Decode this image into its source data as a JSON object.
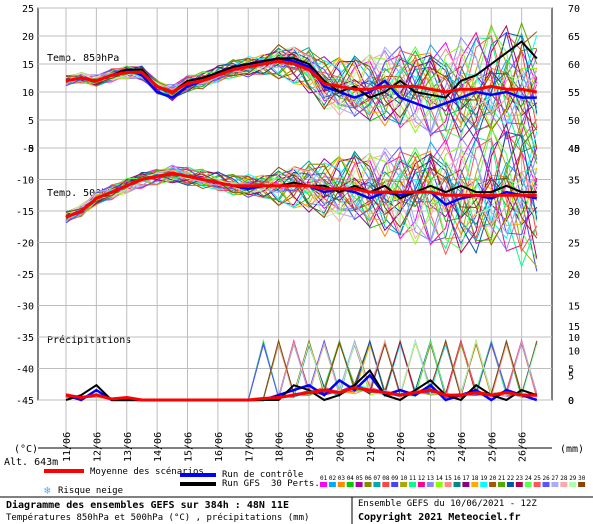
{
  "chart_data": {
    "type": "line",
    "x_dates": [
      "11/06",
      "12/06",
      "13/06",
      "14/06",
      "15/06",
      "16/06",
      "17/06",
      "18/06",
      "19/06",
      "20/06",
      "21/06",
      "22/06",
      "23/06",
      "24/06",
      "25/06",
      "26/06"
    ],
    "panels": [
      {
        "label": "Temp. 850hPa",
        "unit": "°C",
        "left_axis": {
          "ticks": [
            25,
            20,
            15,
            10,
            5,
            0
          ]
        },
        "right_axis": {
          "ticks": [
            70,
            65,
            60,
            55,
            50,
            45
          ]
        },
        "ylim": [
          0,
          25
        ],
        "x": [
          0,
          0.5,
          1,
          1.5,
          2,
          2.5,
          3,
          3.5,
          4,
          4.5,
          5,
          5.5,
          6,
          6.5,
          7,
          7.5,
          8,
          8.5,
          9,
          9.5,
          10,
          10.5,
          11,
          11.5,
          12,
          12.5,
          13,
          13.5,
          14,
          14.5,
          15,
          15.5
        ],
        "series": [
          {
            "name": "Moyenne des scénarios",
            "values": [
              12,
              12.5,
              12,
              13,
              13.5,
              13.5,
              11,
              10,
              11.5,
              12,
              13,
              14,
              14.5,
              15,
              15.5,
              15,
              14,
              11.5,
              11,
              10.5,
              10.5,
              11,
              11,
              11,
              10.5,
              10,
              10.5,
              10.5,
              11,
              10.5,
              10.5,
              10
            ]
          },
          {
            "name": "Run de contrôle",
            "values": [
              12,
              12.5,
              12,
              13,
              14,
              13,
              10,
              9,
              11,
              12,
              13.5,
              14.5,
              15,
              15.5,
              16,
              15.5,
              14.5,
              11,
              10,
              9,
              10,
              12,
              9,
              8,
              7,
              8,
              9,
              10,
              9.5,
              10,
              9,
              9
            ]
          },
          {
            "name": "Run GFS",
            "values": [
              12,
              12.5,
              12,
              13,
              14,
              14,
              11,
              10,
              12,
              12.5,
              13.5,
              14.5,
              15,
              15.5,
              16,
              16,
              15,
              12,
              10,
              11,
              9,
              10,
              12,
              10,
              9.5,
              9,
              12,
              13,
              15,
              17,
              19,
              16
            ]
          }
        ]
      },
      {
        "label": "Temp. 500hPa",
        "unit": "°C",
        "left_axis": {
          "ticks": [
            -5,
            -10,
            -15,
            -20,
            -25,
            -30,
            -35,
            -40,
            -45
          ]
        },
        "right_axis": {
          "ticks": [
            40,
            35,
            30,
            25,
            20,
            15,
            10,
            5,
            0
          ]
        },
        "ylim": [
          -45,
          -5
        ],
        "x": [
          0,
          0.5,
          1,
          1.5,
          2,
          2.5,
          3,
          3.5,
          4,
          4.5,
          5,
          5.5,
          6,
          6.5,
          7,
          7.5,
          8,
          8.5,
          9,
          9.5,
          10,
          10.5,
          11,
          11.5,
          12,
          12.5,
          13,
          13.5,
          14,
          14.5,
          15,
          15.5
        ],
        "series": [
          {
            "name": "Moyenne des scénarios",
            "values": [
              -16,
              -15,
              -13,
              -12,
              -11,
              -10,
              -9.5,
              -9,
              -9.5,
              -10,
              -10.5,
              -11,
              -11,
              -11,
              -11,
              -11,
              -11,
              -11.5,
              -11.5,
              -11.5,
              -12,
              -12,
              -12,
              -12,
              -12,
              -12.5,
              -12.5,
              -12.5,
              -12.5,
              -12.5,
              -12.5,
              -12.5
            ]
          },
          {
            "name": "Run de contrôle",
            "values": [
              -16,
              -15,
              -13,
              -12,
              -11,
              -10,
              -9.5,
              -9,
              -9.5,
              -10,
              -10.5,
              -11,
              -11.5,
              -11,
              -11,
              -11,
              -11,
              -12,
              -11.5,
              -12,
              -13,
              -12,
              -12.5,
              -12,
              -12,
              -14,
              -13,
              -12.5,
              -13,
              -12,
              -12.5,
              -13
            ]
          },
          {
            "name": "Run GFS",
            "values": [
              -16,
              -15,
              -13,
              -12,
              -11,
              -10,
              -9.5,
              -9,
              -9.5,
              -10,
              -10.5,
              -11,
              -11,
              -11,
              -11,
              -10.5,
              -11,
              -11,
              -12,
              -11,
              -12,
              -11,
              -13,
              -12,
              -11,
              -12,
              -11,
              -12,
              -12,
              -11,
              -12,
              -12
            ]
          }
        ]
      },
      {
        "label": "Précipitations",
        "unit": "mm",
        "right_axis": {
          "ticks": [
            15,
            10,
            5,
            0
          ]
        },
        "ylim": [
          0,
          15
        ],
        "x": [
          0,
          0.5,
          1,
          1.5,
          2,
          2.5,
          3,
          3.5,
          4,
          4.5,
          5,
          5.5,
          6,
          6.5,
          7,
          7.5,
          8,
          8.5,
          9,
          9.5,
          10,
          10.5,
          11,
          11.5,
          12,
          12.5,
          13,
          13.5,
          14,
          14.5,
          15,
          15.5
        ],
        "series": [
          {
            "name": "Moyenne des scénarios",
            "values": [
              1,
              0.5,
              1,
              0.2,
              0.5,
              0,
              0,
              0,
              0,
              0,
              0,
              0,
              0,
              0.3,
              0.5,
              1,
              1.5,
              2,
              1.5,
              2.5,
              2,
              1.5,
              1,
              1.5,
              2,
              1,
              1,
              1.5,
              1,
              1.5,
              1,
              1
            ]
          },
          {
            "name": "Run de contrôle",
            "values": [
              1,
              0,
              2,
              0,
              0,
              0,
              0,
              0,
              0,
              0,
              0,
              0,
              0,
              0,
              1,
              2,
              3,
              1,
              4,
              2,
              5,
              1,
              2,
              1,
              3,
              0,
              1,
              2,
              0,
              2,
              1,
              0
            ]
          },
          {
            "name": "Run GFS",
            "values": [
              0,
              1,
              3,
              0,
              0,
              0,
              0,
              0,
              0,
              0,
              0,
              0,
              0,
              0,
              0,
              3,
              2,
              0,
              1,
              3,
              6,
              1,
              0,
              2,
              4,
              1,
              0,
              3,
              1,
              0,
              2,
              1
            ]
          }
        ]
      }
    ],
    "left_axis_unit": "(°C)",
    "right_axis_unit": "(mm)",
    "altitude": "Alt. 643m",
    "legend": [
      {
        "label": "Moyenne des scénarios",
        "color": "#ff0000"
      },
      {
        "label": "Run de contrôle",
        "color": "#0000ff"
      },
      {
        "label": "Run GFS",
        "color": "#000000"
      },
      {
        "label": "Risque neige",
        "color": "#5aaaf0"
      }
    ],
    "perts_label": "30 Perts.",
    "pert_numbers": [
      "01",
      "02",
      "03",
      "04",
      "05",
      "06",
      "07",
      "08",
      "09",
      "10",
      "11",
      "12",
      "13",
      "14",
      "15",
      "16",
      "17",
      "18",
      "19",
      "20",
      "21",
      "22",
      "23",
      "24",
      "25",
      "26",
      "27",
      "28",
      "29",
      "30"
    ],
    "pert_colors": [
      "#ff00ff",
      "#00aaff",
      "#ff8800",
      "#00cc00",
      "#aa00aa",
      "#888800",
      "#00aaaa",
      "#ff4444",
      "#4444ff",
      "#aaaa00",
      "#00ff88",
      "#ff0088",
      "#8888ff",
      "#88ff00",
      "#ff8888",
      "#008888",
      "#880088",
      "#ffaa00",
      "#00ffff",
      "#aa5500",
      "#55aa00",
      "#0055aa",
      "#aa0055",
      "#55ff55",
      "#ff5555",
      "#5555ff",
      "#aaaaff",
      "#ffaaaa",
      "#aaffaa",
      "#884400"
    ],
    "footer": {
      "title_line1": "Diagramme des ensembles GEFS sur 384h : 48N 11E",
      "title_line2": "Températures 850hPa et 500hPa (°C) , précipitations (mm)",
      "ens_line": "Ensemble GEFS du 10/06/2021 - 12Z",
      "copyright": "Copyright 2021 Meteociel.fr"
    },
    "colors": {
      "mean": "#ff0000",
      "control": "#0000ff",
      "gfs": "#000000",
      "snow": "#5aaaf0"
    }
  }
}
